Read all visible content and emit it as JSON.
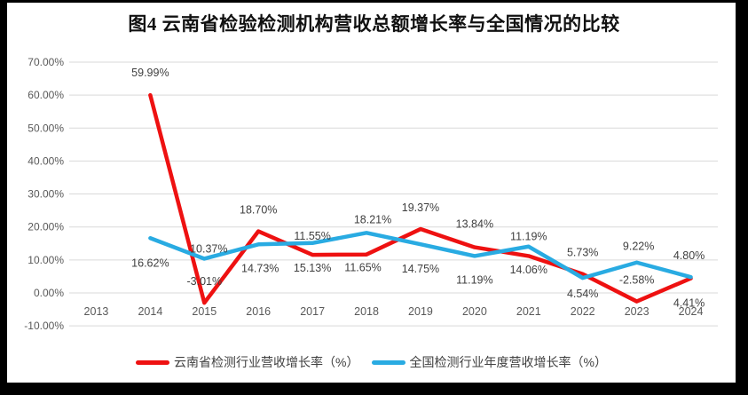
{
  "title": "图4 云南省检验检测机构营收总额增长率与全国情况的比较",
  "chart_data": {
    "type": "line",
    "categories": [
      "2013",
      "2014",
      "2015",
      "2016",
      "2017",
      "2018",
      "2019",
      "2020",
      "2021",
      "2022",
      "2023",
      "2024"
    ],
    "series": [
      {
        "name": "云南省检测行业营收增长率（%）",
        "color": "#ee1111",
        "values": [
          null,
          59.99,
          -3.01,
          18.7,
          11.55,
          11.65,
          19.37,
          13.84,
          11.19,
          5.73,
          -2.58,
          4.41
        ],
        "labels": [
          "",
          "59.99%",
          "-3.01%",
          "18.70%",
          "11.55%",
          "11.65%",
          "19.37%",
          "13.84%",
          "11.19%",
          "5.73%",
          "-2.58%",
          "4.41%"
        ]
      },
      {
        "name": "全国检测行业年度营收增长率（%）",
        "color": "#29abe2",
        "values": [
          null,
          16.62,
          10.37,
          14.73,
          15.13,
          18.21,
          14.75,
          11.19,
          14.06,
          4.54,
          9.22,
          4.8
        ],
        "labels": [
          "",
          "16.62%",
          "10.37%",
          "14.73%",
          "15.13%",
          "18.21%",
          "14.75%",
          "11.19%",
          "14.06%",
          "4.54%",
          "9.22%",
          "4.80%"
        ]
      }
    ],
    "title": "图4 云南省检验检测机构营收总额增长率与全国情况的比较",
    "xlabel": "",
    "ylabel": "",
    "ylim": [
      -10,
      70
    ],
    "y_ticks": [
      "70.00%",
      "60.00%",
      "50.00%",
      "40.00%",
      "30.00%",
      "20.00%",
      "10.00%",
      "0.00%",
      "-10.00%"
    ],
    "y_tick_values": [
      70,
      60,
      50,
      40,
      30,
      20,
      10,
      0,
      -10
    ],
    "grid": true,
    "legend_position": "bottom"
  }
}
